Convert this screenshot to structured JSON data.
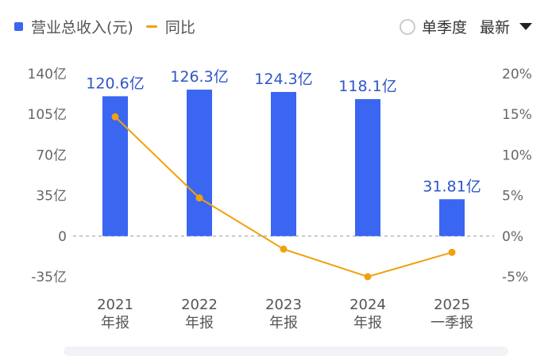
{
  "legend": {
    "revenue_label": "营业总收入(元)",
    "yoy_label": "同比",
    "revenue_color": "#3a66f1",
    "yoy_color": "#f0a10d"
  },
  "controls": {
    "quarterly_label": "单季度",
    "select_value": "最新",
    "radio_icon": "radio-unchecked-icon",
    "dropdown_icon": "triangle-down-icon"
  },
  "chart_data": {
    "type": "bar",
    "categories": [
      [
        "2021",
        "年报"
      ],
      [
        "2022",
        "年报"
      ],
      [
        "2023",
        "年报"
      ],
      [
        "2024",
        "年报"
      ],
      [
        "2025",
        "一季报"
      ]
    ],
    "series": [
      {
        "name": "营业总收入(元)",
        "type": "bar",
        "axis": "left",
        "values": [
          120.6,
          126.3,
          124.3,
          118.1,
          31.81
        ],
        "labels": [
          "120.6亿",
          "126.3亿",
          "124.3亿",
          "118.1亿",
          "31.81亿"
        ]
      },
      {
        "name": "同比",
        "type": "line",
        "axis": "right",
        "values": [
          14.7,
          4.7,
          -1.6,
          -5.0,
          -2.0
        ]
      }
    ],
    "left_axis": {
      "ticks": [
        140,
        105,
        70,
        35,
        0,
        -35
      ],
      "tick_labels": [
        "140亿",
        "105亿",
        "70亿",
        "35亿",
        "0",
        "-35亿"
      ],
      "range": [
        -35,
        140
      ]
    },
    "right_axis": {
      "ticks": [
        20,
        15,
        10,
        5,
        0,
        -5
      ],
      "tick_labels": [
        "20%",
        "15%",
        "10%",
        "5%",
        "0%",
        "-5%"
      ],
      "range": [
        -5,
        20
      ]
    },
    "zero_line": "dashed",
    "grid": false
  }
}
